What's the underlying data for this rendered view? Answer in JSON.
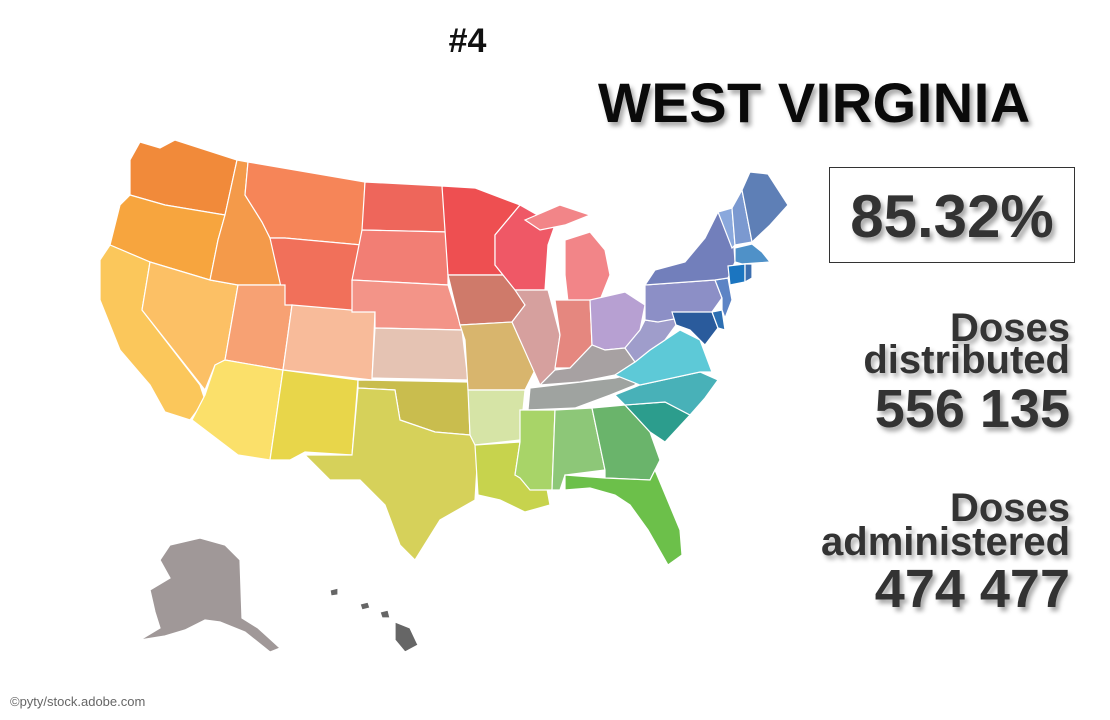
{
  "rank": "#4",
  "state": "WEST VIRGINIA",
  "percent": "85.32%",
  "doses_distributed": {
    "label_line1": "Doses",
    "label_line2": "distributed",
    "value": "556 135"
  },
  "doses_administered": {
    "label_line1": "Doses",
    "label_line2": "administered",
    "value": "474 477"
  },
  "credit": "©pyty/stock.adobe.com",
  "highlighted_state": "west-virginia",
  "colors": {
    "washington": "#f18a3a",
    "oregon": "#f7a53e",
    "california": "#fbc75b",
    "nevada": "#fcc065",
    "idaho": "#f49a4a",
    "montana": "#f68558",
    "wyoming": "#f1705a",
    "utah": "#f7a173",
    "arizona": "#fbe06a",
    "colorado": "#f8bb9a",
    "new-mexico": "#e8d64a",
    "north-dakota": "#ee665b",
    "south-dakota": "#f27e74",
    "nebraska": "#f39488",
    "kansas": "#e5c3b3",
    "oklahoma": "#c9bd4e",
    "texas": "#d6d15a",
    "minnesota": "#ee4f51",
    "iowa": "#cf7a6a",
    "missouri": "#d8b56d",
    "arkansas": "#d6e4a6",
    "louisiana": "#c7d34d",
    "wisconsin": "#ef5866",
    "illinois": "#d6a09e",
    "michigan": "#f28588",
    "indiana": "#e5877f",
    "ohio": "#b7a0d2",
    "kentucky": "#a7a1a2",
    "tennessee": "#9fa3a0",
    "mississippi": "#a8d468",
    "alabama": "#8dc778",
    "georgia": "#6ab46b",
    "florida": "#6cc04a",
    "south-carolina": "#2c9d8d",
    "north-carolina": "#48b1b8",
    "virginia": "#5dc9d7",
    "west-virginia": "#9f9dcb",
    "pennsylvania": "#8c8fc6",
    "new-york": "#727fbb",
    "vermont": "#8aa8dc",
    "new-hampshire": "#7b99d0",
    "maine": "#5e7fb6",
    "massachusetts": "#4f91c8",
    "connecticut": "#1b75c0",
    "rhode-island": "#3c6fb0",
    "new-jersey": "#5d84c5",
    "delaware": "#2d6fb2",
    "maryland": "#2a5b9c",
    "alaska": "#a09898",
    "hawaii": "#666666"
  }
}
